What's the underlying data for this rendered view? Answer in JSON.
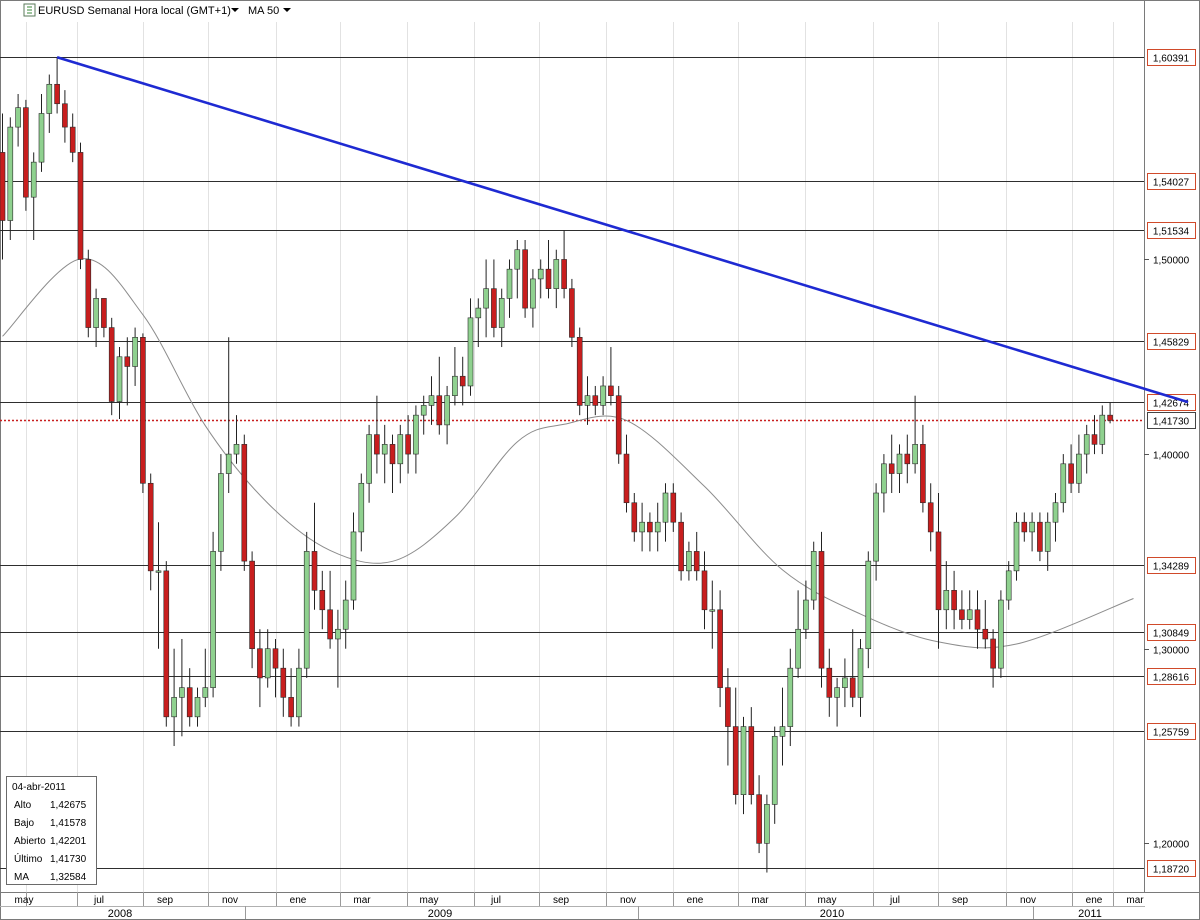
{
  "header": {
    "symbol_title": "EURUSD Semanal Hora local (GMT+1)",
    "indicator": "MA 50"
  },
  "info_box": {
    "date": "04-abr-2011",
    "rows": [
      {
        "label": "Alto",
        "value": "1,42675"
      },
      {
        "label": "Bajo",
        "value": "1,41578"
      },
      {
        "label": "Abierto",
        "value": "1,42201"
      },
      {
        "label": "Último",
        "value": "1,41730"
      },
      {
        "label": "MA",
        "value": "1,32584"
      }
    ]
  },
  "colors": {
    "up": "#8fd18f",
    "down": "#c81e1e",
    "trendline": "#1e2ad2",
    "level_label_border": "#d04a2a",
    "last_price": "#c81e1e",
    "ma": "#8c8c8c"
  },
  "chart_data": {
    "type": "candlestick",
    "title": "EURUSD Semanal Hora local (GMT+1)",
    "indicator": "MA 50",
    "ylim": [
      1.175,
      1.622
    ],
    "y_ticks": [
      {
        "value": 1.2,
        "label": "1,20000"
      },
      {
        "value": 1.3,
        "label": "1,30000"
      },
      {
        "value": 1.4,
        "label": "1,40000"
      },
      {
        "value": 1.5,
        "label": "1,50000"
      }
    ],
    "price_levels": [
      {
        "value": 1.60391,
        "label": "1,60391"
      },
      {
        "value": 1.54027,
        "label": "1,54027"
      },
      {
        "value": 1.51534,
        "label": "1,51534"
      },
      {
        "value": 1.45829,
        "label": "1,45829"
      },
      {
        "value": 1.42674,
        "label": "1,42674"
      },
      {
        "value": 1.34289,
        "label": "1,34289"
      },
      {
        "value": 1.30849,
        "label": "1,30849"
      },
      {
        "value": 1.28616,
        "label": "1,28616"
      },
      {
        "value": 1.25759,
        "label": "1,25759"
      },
      {
        "value": 1.1872,
        "label": "1,18720"
      }
    ],
    "last_price": {
      "value": 1.4173,
      "label": "1,41730"
    },
    "trendline": [
      {
        "week": 7,
        "price": 1.6039
      },
      {
        "week": 152,
        "price": 1.4267
      }
    ],
    "month_labels": [
      "may",
      "jul",
      "sep",
      "nov",
      "ene",
      "mar",
      "may",
      "jul",
      "sep",
      "nov",
      "ene",
      "mar",
      "may",
      "jul",
      "sep",
      "nov",
      "ene",
      "mar"
    ],
    "year_labels": [
      "2008",
      "2009",
      "2010",
      "2011"
    ],
    "candles": [
      [
        1.555,
        1.575,
        1.5,
        1.52
      ],
      [
        1.52,
        1.573,
        1.51,
        1.568
      ],
      [
        1.568,
        1.585,
        1.558,
        1.578
      ],
      [
        1.578,
        1.582,
        1.525,
        1.532
      ],
      [
        1.532,
        1.555,
        1.51,
        1.55
      ],
      [
        1.55,
        1.585,
        1.545,
        1.575
      ],
      [
        1.575,
        1.595,
        1.565,
        1.59
      ],
      [
        1.59,
        1.604,
        1.575,
        1.58
      ],
      [
        1.58,
        1.587,
        1.56,
        1.568
      ],
      [
        1.568,
        1.575,
        1.55,
        1.555
      ],
      [
        1.555,
        1.56,
        1.495,
        1.5
      ],
      [
        1.5,
        1.505,
        1.46,
        1.465
      ],
      [
        1.465,
        1.485,
        1.455,
        1.48
      ],
      [
        1.48,
        1.48,
        1.46,
        1.465
      ],
      [
        1.465,
        1.47,
        1.42,
        1.427
      ],
      [
        1.427,
        1.455,
        1.418,
        1.45
      ],
      [
        1.45,
        1.46,
        1.425,
        1.445
      ],
      [
        1.445,
        1.465,
        1.435,
        1.46
      ],
      [
        1.46,
        1.462,
        1.38,
        1.385
      ],
      [
        1.385,
        1.39,
        1.33,
        1.34
      ],
      [
        1.34,
        1.365,
        1.3,
        1.34
      ],
      [
        1.34,
        1.345,
        1.26,
        1.265
      ],
      [
        1.265,
        1.3,
        1.25,
        1.275
      ],
      [
        1.275,
        1.305,
        1.255,
        1.28
      ],
      [
        1.28,
        1.29,
        1.26,
        1.265
      ],
      [
        1.265,
        1.28,
        1.26,
        1.275
      ],
      [
        1.275,
        1.3,
        1.27,
        1.28
      ],
      [
        1.28,
        1.36,
        1.275,
        1.35
      ],
      [
        1.35,
        1.4,
        1.34,
        1.39
      ],
      [
        1.39,
        1.46,
        1.38,
        1.4
      ],
      [
        1.4,
        1.42,
        1.395,
        1.405
      ],
      [
        1.405,
        1.41,
        1.34,
        1.345
      ],
      [
        1.345,
        1.35,
        1.29,
        1.3
      ],
      [
        1.3,
        1.31,
        1.27,
        1.285
      ],
      [
        1.285,
        1.31,
        1.28,
        1.3
      ],
      [
        1.3,
        1.305,
        1.275,
        1.29
      ],
      [
        1.29,
        1.3,
        1.265,
        1.275
      ],
      [
        1.275,
        1.29,
        1.26,
        1.265
      ],
      [
        1.265,
        1.3,
        1.26,
        1.29
      ],
      [
        1.29,
        1.36,
        1.285,
        1.35
      ],
      [
        1.35,
        1.375,
        1.32,
        1.33
      ],
      [
        1.33,
        1.34,
        1.31,
        1.32
      ],
      [
        1.32,
        1.34,
        1.3,
        1.305
      ],
      [
        1.305,
        1.32,
        1.28,
        1.31
      ],
      [
        1.31,
        1.335,
        1.3,
        1.325
      ],
      [
        1.325,
        1.37,
        1.32,
        1.36
      ],
      [
        1.36,
        1.39,
        1.35,
        1.385
      ],
      [
        1.385,
        1.415,
        1.375,
        1.41
      ],
      [
        1.41,
        1.43,
        1.39,
        1.4
      ],
      [
        1.4,
        1.415,
        1.385,
        1.405
      ],
      [
        1.405,
        1.41,
        1.38,
        1.395
      ],
      [
        1.395,
        1.415,
        1.385,
        1.41
      ],
      [
        1.41,
        1.42,
        1.39,
        1.4
      ],
      [
        1.4,
        1.425,
        1.39,
        1.42
      ],
      [
        1.42,
        1.43,
        1.41,
        1.425
      ],
      [
        1.425,
        1.44,
        1.415,
        1.43
      ],
      [
        1.43,
        1.45,
        1.41,
        1.415
      ],
      [
        1.415,
        1.435,
        1.405,
        1.43
      ],
      [
        1.43,
        1.455,
        1.425,
        1.44
      ],
      [
        1.44,
        1.45,
        1.425,
        1.435
      ],
      [
        1.435,
        1.48,
        1.43,
        1.47
      ],
      [
        1.47,
        1.48,
        1.455,
        1.475
      ],
      [
        1.475,
        1.5,
        1.46,
        1.485
      ],
      [
        1.485,
        1.5,
        1.46,
        1.465
      ],
      [
        1.465,
        1.485,
        1.455,
        1.48
      ],
      [
        1.48,
        1.5,
        1.47,
        1.495
      ],
      [
        1.495,
        1.51,
        1.48,
        1.505
      ],
      [
        1.505,
        1.51,
        1.47,
        1.475
      ],
      [
        1.475,
        1.495,
        1.465,
        1.49
      ],
      [
        1.49,
        1.5,
        1.48,
        1.495
      ],
      [
        1.495,
        1.51,
        1.48,
        1.485
      ],
      [
        1.485,
        1.505,
        1.475,
        1.5
      ],
      [
        1.5,
        1.515,
        1.48,
        1.485
      ],
      [
        1.485,
        1.49,
        1.455,
        1.46
      ],
      [
        1.46,
        1.465,
        1.42,
        1.425
      ],
      [
        1.425,
        1.44,
        1.415,
        1.43
      ],
      [
        1.43,
        1.435,
        1.42,
        1.425
      ],
      [
        1.425,
        1.44,
        1.42,
        1.435
      ],
      [
        1.435,
        1.455,
        1.425,
        1.43
      ],
      [
        1.43,
        1.435,
        1.395,
        1.4
      ],
      [
        1.4,
        1.41,
        1.37,
        1.375
      ],
      [
        1.375,
        1.38,
        1.355,
        1.36
      ],
      [
        1.36,
        1.375,
        1.35,
        1.365
      ],
      [
        1.365,
        1.37,
        1.35,
        1.36
      ],
      [
        1.36,
        1.375,
        1.35,
        1.365
      ],
      [
        1.365,
        1.385,
        1.355,
        1.38
      ],
      [
        1.38,
        1.385,
        1.36,
        1.365
      ],
      [
        1.365,
        1.37,
        1.335,
        1.34
      ],
      [
        1.34,
        1.355,
        1.335,
        1.35
      ],
      [
        1.35,
        1.36,
        1.335,
        1.34
      ],
      [
        1.34,
        1.35,
        1.31,
        1.32
      ],
      [
        1.32,
        1.335,
        1.3,
        1.32
      ],
      [
        1.32,
        1.33,
        1.27,
        1.28
      ],
      [
        1.28,
        1.29,
        1.24,
        1.26
      ],
      [
        1.26,
        1.28,
        1.22,
        1.225
      ],
      [
        1.225,
        1.265,
        1.215,
        1.26
      ],
      [
        1.26,
        1.27,
        1.22,
        1.225
      ],
      [
        1.225,
        1.235,
        1.195,
        1.2
      ],
      [
        1.2,
        1.225,
        1.185,
        1.22
      ],
      [
        1.22,
        1.26,
        1.21,
        1.255
      ],
      [
        1.255,
        1.28,
        1.24,
        1.26
      ],
      [
        1.26,
        1.3,
        1.25,
        1.29
      ],
      [
        1.29,
        1.33,
        1.285,
        1.31
      ],
      [
        1.31,
        1.335,
        1.305,
        1.325
      ],
      [
        1.325,
        1.355,
        1.32,
        1.35
      ],
      [
        1.35,
        1.36,
        1.28,
        1.29
      ],
      [
        1.29,
        1.3,
        1.265,
        1.275
      ],
      [
        1.275,
        1.285,
        1.26,
        1.28
      ],
      [
        1.28,
        1.295,
        1.27,
        1.285
      ],
      [
        1.285,
        1.31,
        1.27,
        1.275
      ],
      [
        1.275,
        1.305,
        1.265,
        1.3
      ],
      [
        1.3,
        1.35,
        1.29,
        1.345
      ],
      [
        1.345,
        1.385,
        1.335,
        1.38
      ],
      [
        1.38,
        1.4,
        1.37,
        1.395
      ],
      [
        1.395,
        1.41,
        1.38,
        1.39
      ],
      [
        1.39,
        1.405,
        1.38,
        1.4
      ],
      [
        1.4,
        1.41,
        1.385,
        1.395
      ],
      [
        1.395,
        1.43,
        1.39,
        1.405
      ],
      [
        1.405,
        1.415,
        1.37,
        1.375
      ],
      [
        1.375,
        1.385,
        1.35,
        1.36
      ],
      [
        1.36,
        1.38,
        1.3,
        1.32
      ],
      [
        1.32,
        1.345,
        1.31,
        1.33
      ],
      [
        1.33,
        1.34,
        1.31,
        1.32
      ],
      [
        1.32,
        1.33,
        1.31,
        1.315
      ],
      [
        1.315,
        1.33,
        1.31,
        1.32
      ],
      [
        1.32,
        1.33,
        1.3,
        1.31
      ],
      [
        1.31,
        1.325,
        1.3,
        1.305
      ],
      [
        1.305,
        1.31,
        1.28,
        1.29
      ],
      [
        1.29,
        1.33,
        1.285,
        1.325
      ],
      [
        1.325,
        1.345,
        1.32,
        1.34
      ],
      [
        1.34,
        1.37,
        1.335,
        1.365
      ],
      [
        1.365,
        1.37,
        1.355,
        1.36
      ],
      [
        1.36,
        1.37,
        1.35,
        1.365
      ],
      [
        1.365,
        1.37,
        1.345,
        1.35
      ],
      [
        1.35,
        1.37,
        1.34,
        1.365
      ],
      [
        1.365,
        1.38,
        1.355,
        1.375
      ],
      [
        1.375,
        1.4,
        1.37,
        1.395
      ],
      [
        1.395,
        1.405,
        1.38,
        1.385
      ],
      [
        1.385,
        1.41,
        1.38,
        1.4
      ],
      [
        1.4,
        1.415,
        1.39,
        1.41
      ],
      [
        1.41,
        1.42,
        1.4,
        1.405
      ],
      [
        1.405,
        1.425,
        1.4,
        1.42
      ],
      [
        1.42,
        1.4267,
        1.4158,
        1.4173
      ]
    ],
    "ma": [
      [
        0,
        1.4605
      ],
      [
        10,
        1.5003
      ],
      [
        18,
        1.4716
      ],
      [
        26,
        1.4146
      ],
      [
        34,
        1.3748
      ],
      [
        42,
        1.3505
      ],
      [
        50,
        1.3449
      ],
      [
        58,
        1.3674
      ],
      [
        66,
        1.4063
      ],
      [
        72,
        1.4153
      ],
      [
        80,
        1.4173
      ],
      [
        90,
        1.3834
      ],
      [
        100,
        1.3405
      ],
      [
        110,
        1.3178
      ],
      [
        120,
        1.3035
      ],
      [
        130,
        1.3024
      ],
      [
        145,
        1.3258
      ]
    ]
  }
}
